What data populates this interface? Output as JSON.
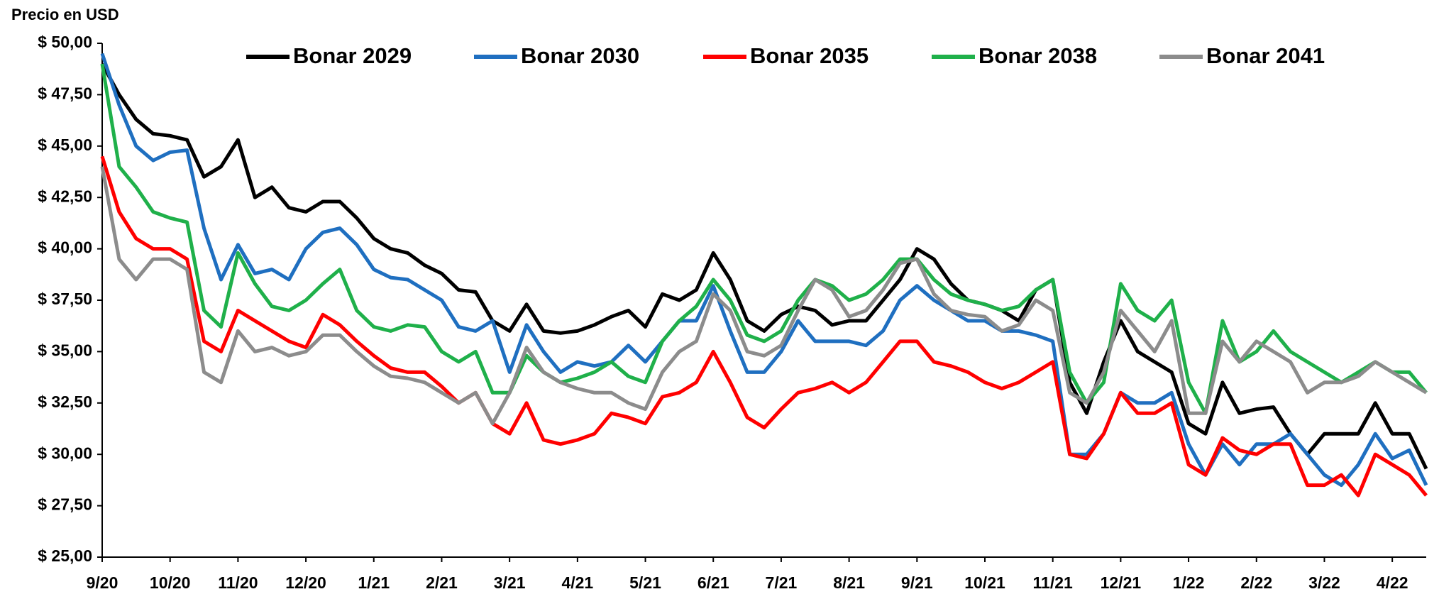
{
  "chart_data": {
    "type": "line",
    "title": "Precio en USD",
    "categories": [
      "9/20",
      null,
      null,
      null,
      "10/20",
      null,
      null,
      null,
      "11/20",
      null,
      null,
      null,
      "12/20",
      null,
      null,
      null,
      "1/21",
      null,
      null,
      null,
      "2/21",
      null,
      null,
      null,
      "3/21",
      null,
      null,
      null,
      "4/21",
      null,
      null,
      null,
      "5/21",
      null,
      null,
      null,
      "6/21",
      null,
      null,
      null,
      "7/21",
      null,
      null,
      null,
      "8/21",
      null,
      null,
      null,
      "9/21",
      null,
      null,
      null,
      "10/21",
      null,
      null,
      null,
      "11/21",
      null,
      null,
      null,
      "12/21",
      null,
      null,
      null,
      "1/22",
      null,
      null,
      null,
      "2/22",
      null,
      null,
      null,
      "3/22",
      null,
      null,
      null,
      "4/22",
      null,
      null
    ],
    "series": [
      {
        "name": "Bonar 2029",
        "color": "#000000",
        "values": [
          49.0,
          47.5,
          46.3,
          45.6,
          45.5,
          45.3,
          43.5,
          44.0,
          45.3,
          42.5,
          43.0,
          42.0,
          41.8,
          42.3,
          42.3,
          41.5,
          40.5,
          40.0,
          39.8,
          39.2,
          38.8,
          38.0,
          37.9,
          36.5,
          36.0,
          37.3,
          36.0,
          35.9,
          36.0,
          36.3,
          36.7,
          37.0,
          36.2,
          37.8,
          37.5,
          38.0,
          39.8,
          38.5,
          36.5,
          36.0,
          36.8,
          37.2,
          37.0,
          36.3,
          36.5,
          36.5,
          37.5,
          38.5,
          40.0,
          39.5,
          38.3,
          37.5,
          37.3,
          37.0,
          36.5,
          38.0,
          38.5,
          33.5,
          32.0,
          34.5,
          36.5,
          35.0,
          34.5,
          34.0,
          31.5,
          31.0,
          33.5,
          32.0,
          32.2,
          32.3,
          31.0,
          30.0,
          31.0,
          31.0,
          31.0,
          32.5,
          31.0,
          31.0,
          29.3
        ]
      },
      {
        "name": "Bonar 2030",
        "color": "#1f6fc0",
        "values": [
          49.5,
          47.0,
          45.0,
          44.3,
          44.7,
          44.8,
          41.0,
          38.5,
          40.2,
          38.8,
          39.0,
          38.5,
          40.0,
          40.8,
          41.0,
          40.2,
          39.0,
          38.6,
          38.5,
          38.0,
          37.5,
          36.2,
          36.0,
          36.5,
          34.0,
          36.3,
          35.0,
          34.0,
          34.5,
          34.3,
          34.5,
          35.3,
          34.5,
          35.5,
          36.5,
          36.5,
          38.2,
          36.0,
          34.0,
          34.0,
          35.0,
          36.5,
          35.5,
          35.5,
          35.5,
          35.3,
          36.0,
          37.5,
          38.2,
          37.5,
          37.0,
          36.5,
          36.5,
          36.0,
          36.0,
          35.8,
          35.5,
          30.0,
          30.0,
          31.0,
          33.0,
          32.5,
          32.5,
          33.0,
          30.5,
          29.0,
          30.5,
          29.5,
          30.5,
          30.5,
          31.0,
          30.0,
          29.0,
          28.5,
          29.5,
          31.0,
          29.8,
          30.2,
          28.5
        ]
      },
      {
        "name": "Bonar 2035",
        "color": "#ff0000",
        "values": [
          44.5,
          41.8,
          40.5,
          40.0,
          40.0,
          39.5,
          35.5,
          35.0,
          37.0,
          36.5,
          36.0,
          35.5,
          35.2,
          36.8,
          36.3,
          35.5,
          34.8,
          34.2,
          34.0,
          34.0,
          33.3,
          32.5,
          33.0,
          31.5,
          31.0,
          32.5,
          30.7,
          30.5,
          30.7,
          31.0,
          32.0,
          31.8,
          31.5,
          32.8,
          33.0,
          33.5,
          35.0,
          33.5,
          31.8,
          31.3,
          32.2,
          33.0,
          33.2,
          33.5,
          33.0,
          33.5,
          34.5,
          35.5,
          35.5,
          34.5,
          34.3,
          34.0,
          33.5,
          33.2,
          33.5,
          34.0,
          34.5,
          30.0,
          29.8,
          31.0,
          33.0,
          32.0,
          32.0,
          32.5,
          29.5,
          29.0,
          30.8,
          30.2,
          30.0,
          30.5,
          30.5,
          28.5,
          28.5,
          29.0,
          28.0,
          30.0,
          29.5,
          29.0,
          28.0
        ]
      },
      {
        "name": "Bonar 2038",
        "color": "#1fb04a",
        "values": [
          49.0,
          44.0,
          43.0,
          41.8,
          41.5,
          41.3,
          37.0,
          36.2,
          39.8,
          38.3,
          37.2,
          37.0,
          37.5,
          38.3,
          39.0,
          37.0,
          36.2,
          36.0,
          36.3,
          36.2,
          35.0,
          34.5,
          35.0,
          33.0,
          33.0,
          34.8,
          34.0,
          33.5,
          33.7,
          34.0,
          34.5,
          33.8,
          33.5,
          35.5,
          36.5,
          37.2,
          38.5,
          37.5,
          35.8,
          35.5,
          36.0,
          37.5,
          38.5,
          38.2,
          37.5,
          37.8,
          38.5,
          39.5,
          39.5,
          38.5,
          37.8,
          37.5,
          37.3,
          37.0,
          37.2,
          38.0,
          38.5,
          34.0,
          32.5,
          33.5,
          38.3,
          37.0,
          36.5,
          37.5,
          33.5,
          32.0,
          36.5,
          34.5,
          35.0,
          36.0,
          35.0,
          34.5,
          34.0,
          33.5,
          34.0,
          34.5,
          34.0,
          34.0,
          33.0
        ]
      },
      {
        "name": "Bonar 2041",
        "color": "#8c8c8c",
        "values": [
          44.0,
          39.5,
          38.5,
          39.5,
          39.5,
          39.0,
          34.0,
          33.5,
          36.0,
          35.0,
          35.2,
          34.8,
          35.0,
          35.8,
          35.8,
          35.0,
          34.3,
          33.8,
          33.7,
          33.5,
          33.0,
          32.5,
          33.0,
          31.5,
          33.0,
          35.2,
          34.0,
          33.5,
          33.2,
          33.0,
          33.0,
          32.5,
          32.2,
          34.0,
          35.0,
          35.5,
          37.8,
          37.0,
          35.0,
          34.8,
          35.3,
          37.0,
          38.5,
          38.0,
          36.7,
          37.0,
          38.0,
          39.3,
          39.5,
          37.8,
          37.0,
          36.8,
          36.7,
          36.0,
          36.3,
          37.5,
          37.0,
          33.0,
          32.5,
          34.0,
          37.0,
          36.0,
          35.0,
          36.5,
          32.0,
          32.0,
          35.5,
          34.5,
          35.5,
          35.0,
          34.5,
          33.0,
          33.5,
          33.5,
          33.8,
          34.5,
          34.0,
          33.5,
          33.0
        ]
      }
    ],
    "ylim": [
      25,
      50
    ],
    "yticks": [
      {
        "value": 25,
        "label": "$ 25,00"
      },
      {
        "value": 27.5,
        "label": "$ 27,50"
      },
      {
        "value": 30,
        "label": "$ 30,00"
      },
      {
        "value": 32.5,
        "label": "$ 32,50"
      },
      {
        "value": 35,
        "label": "$ 35,00"
      },
      {
        "value": 37.5,
        "label": "$ 37,50"
      },
      {
        "value": 40,
        "label": "$ 40,00"
      },
      {
        "value": 42.5,
        "label": "$ 42,50"
      },
      {
        "value": 45,
        "label": "$ 45,00"
      },
      {
        "value": 47.5,
        "label": "$ 47,50"
      },
      {
        "value": 50,
        "label": "$ 50,00"
      }
    ],
    "grid": false
  }
}
